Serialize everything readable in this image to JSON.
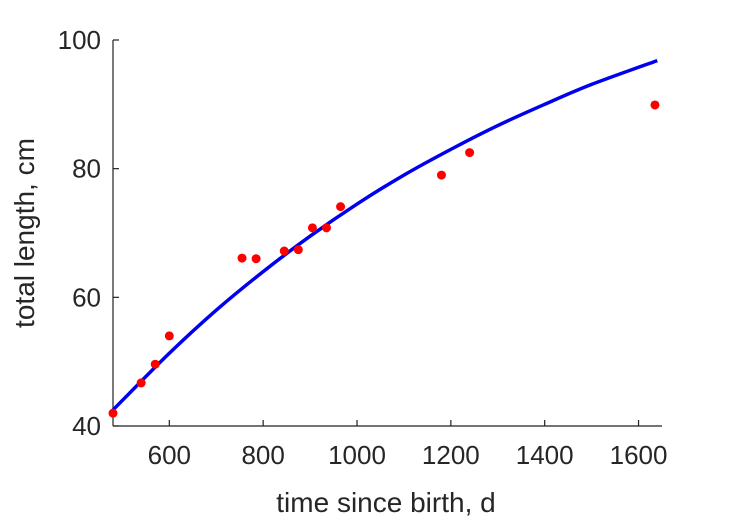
{
  "chart_data": {
    "type": "scatter",
    "title": "",
    "xlabel": "time since birth, d",
    "ylabel": "total length, cm",
    "xlim": [
      480,
      1650
    ],
    "ylim": [
      40,
      100
    ],
    "x_ticks": [
      600,
      800,
      1000,
      1200,
      1400,
      1600
    ],
    "y_ticks": [
      40,
      60,
      80,
      100
    ],
    "x_tick_labels": [
      "600",
      "800",
      "1000",
      "1200",
      "1400",
      "1600"
    ],
    "y_tick_labels": [
      "40",
      "60",
      "80",
      "100"
    ],
    "grid": false,
    "series": [
      {
        "type": "scatter",
        "color": "#ff0000",
        "points": [
          {
            "x": 480,
            "y": 42.0
          },
          {
            "x": 540,
            "y": 46.7
          },
          {
            "x": 570,
            "y": 49.6
          },
          {
            "x": 600,
            "y": 54.0
          },
          {
            "x": 755,
            "y": 66.1
          },
          {
            "x": 785,
            "y": 66.0
          },
          {
            "x": 845,
            "y": 67.2
          },
          {
            "x": 875,
            "y": 67.4
          },
          {
            "x": 905,
            "y": 70.8
          },
          {
            "x": 935,
            "y": 70.8
          },
          {
            "x": 965,
            "y": 74.1
          },
          {
            "x": 1180,
            "y": 79.0
          },
          {
            "x": 1240,
            "y": 82.5
          },
          {
            "x": 1635,
            "y": 89.9
          }
        ]
      },
      {
        "type": "line",
        "color": "#0000ee",
        "points": [
          {
            "x": 480,
            "y": 42.5
          },
          {
            "x": 600,
            "y": 51.3
          },
          {
            "x": 700,
            "y": 58.0
          },
          {
            "x": 800,
            "y": 64.0
          },
          {
            "x": 900,
            "y": 69.5
          },
          {
            "x": 1000,
            "y": 74.5
          },
          {
            "x": 1100,
            "y": 79.0
          },
          {
            "x": 1200,
            "y": 83.0
          },
          {
            "x": 1300,
            "y": 86.7
          },
          {
            "x": 1400,
            "y": 90.0
          },
          {
            "x": 1500,
            "y": 93.1
          },
          {
            "x": 1640,
            "y": 96.8
          }
        ]
      }
    ]
  }
}
